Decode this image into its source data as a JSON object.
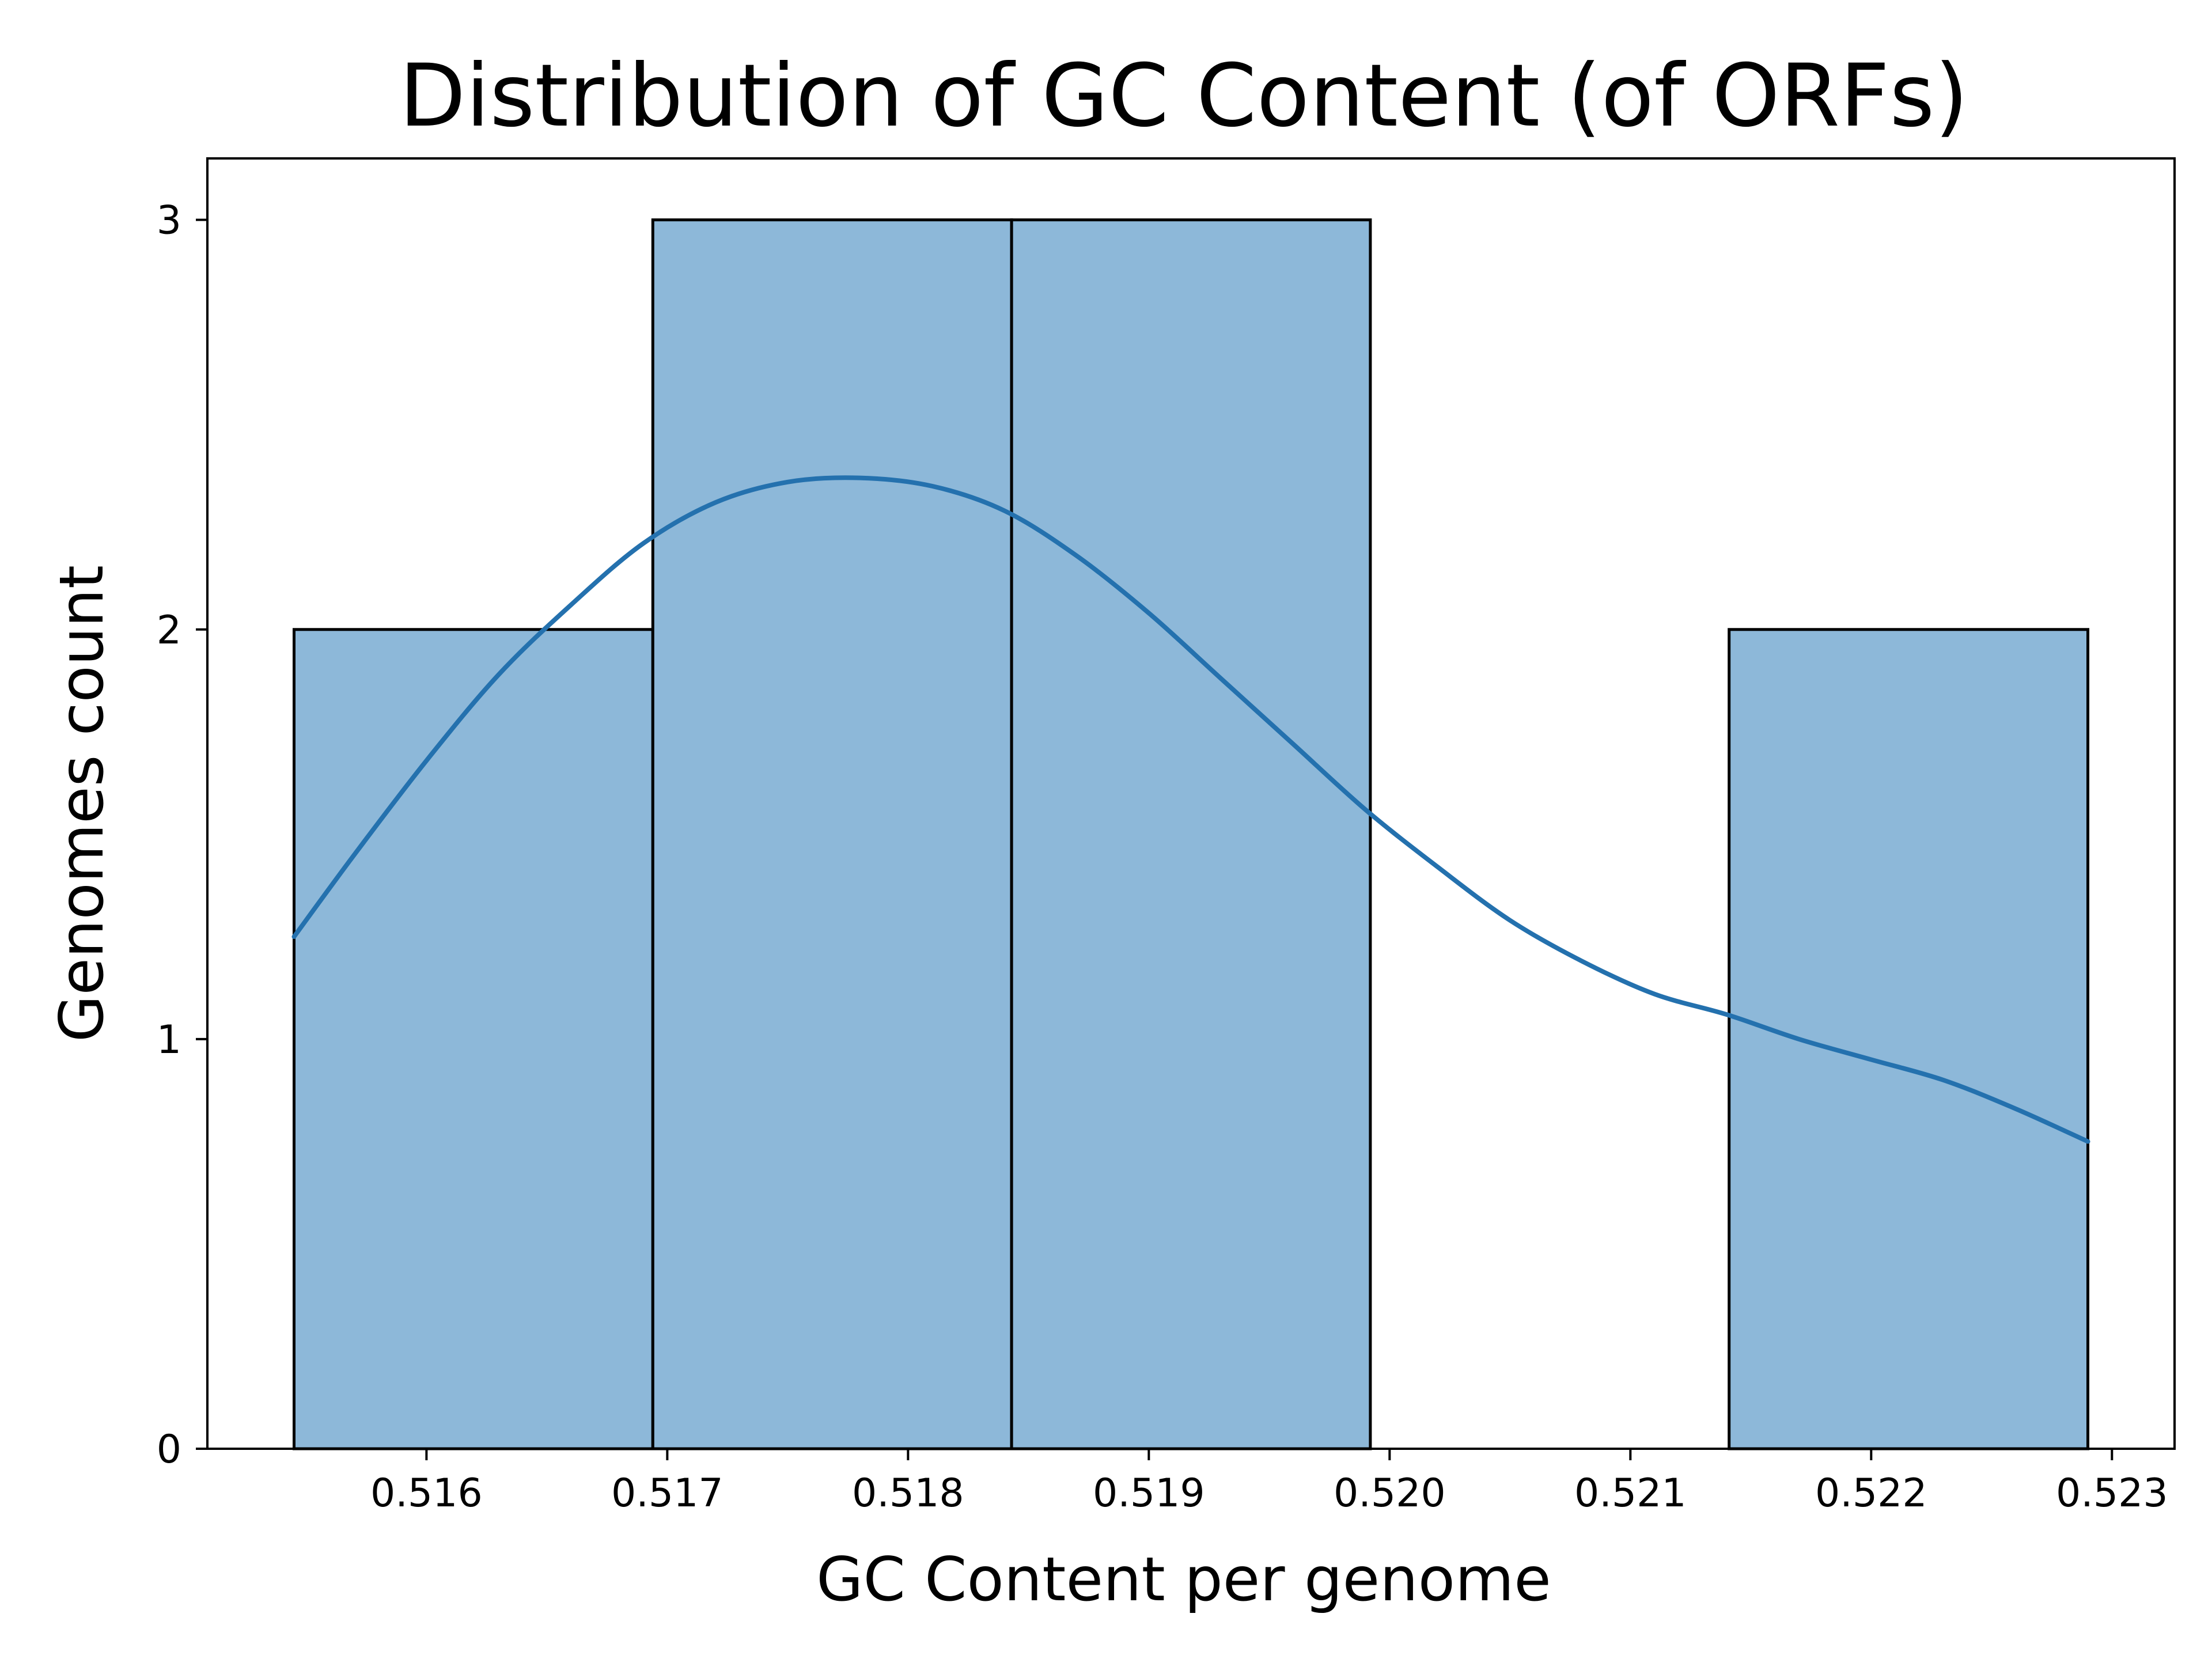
{
  "chart_data": {
    "type": "bar",
    "subtype": "histogram-with-kde",
    "title": "Distribution of GC Content (of ORFs)",
    "xlabel": "GC Content per genome",
    "ylabel": "Genomes count",
    "xlim": [
      0.51509,
      0.52326
    ],
    "ylim": [
      0,
      3.15
    ],
    "x_ticks": [
      0.516,
      0.517,
      0.518,
      0.519,
      0.52,
      0.521,
      0.522,
      0.523
    ],
    "x_tick_labels": [
      "0.516",
      "0.517",
      "0.518",
      "0.519",
      "0.520",
      "0.521",
      "0.522",
      "0.523"
    ],
    "y_ticks": [
      0,
      1,
      2,
      3
    ],
    "y_tick_labels": [
      "0",
      "1",
      "2",
      "3"
    ],
    "bins": [
      {
        "x0": 0.51545,
        "x1": 0.51694,
        "count": 2
      },
      {
        "x0": 0.51694,
        "x1": 0.51843,
        "count": 3
      },
      {
        "x0": 0.51843,
        "x1": 0.51992,
        "count": 3
      },
      {
        "x0": 0.51992,
        "x1": 0.52141,
        "count": 0
      },
      {
        "x0": 0.52141,
        "x1": 0.5229,
        "count": 2
      }
    ],
    "kde": {
      "x": [
        0.51545,
        0.5157,
        0.516,
        0.5163,
        0.5166,
        0.5169,
        0.5172,
        0.5175,
        0.5178,
        0.5181,
        0.5184,
        0.5187,
        0.519,
        0.5193,
        0.5196,
        0.5199,
        0.5202,
        0.5205,
        0.5208,
        0.5211,
        0.5214,
        0.5217,
        0.522,
        0.5223,
        0.5226,
        0.5229
      ],
      "y": [
        1.25,
        1.45,
        1.68,
        1.89,
        2.06,
        2.21,
        2.31,
        2.36,
        2.37,
        2.35,
        2.29,
        2.18,
        2.04,
        1.88,
        1.72,
        1.56,
        1.42,
        1.29,
        1.19,
        1.11,
        1.06,
        1.0,
        0.95,
        0.9,
        0.83,
        0.75
      ]
    },
    "grid": false,
    "legend": "none"
  },
  "colors": {
    "bar_fill": "#8db8d9",
    "bar_edge": "#000000",
    "kde_line": "#2471ae",
    "axis": "#000000",
    "text": "#000000"
  }
}
